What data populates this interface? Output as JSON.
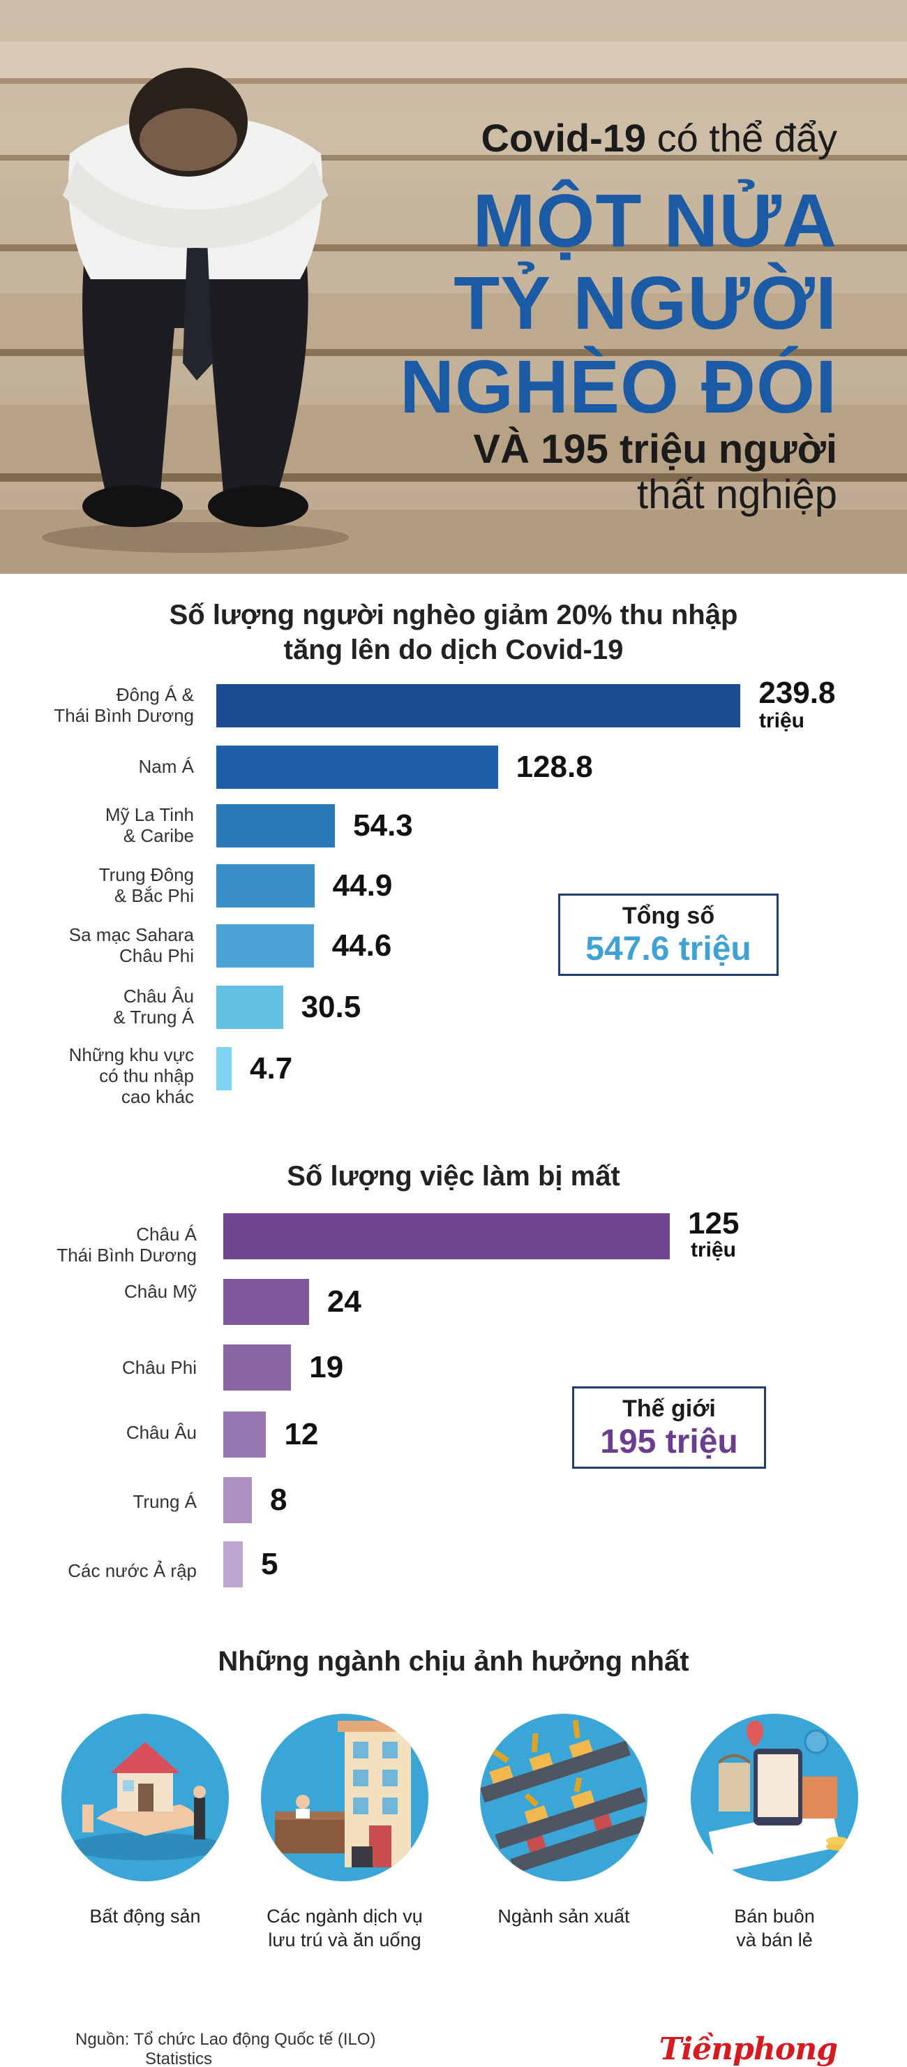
{
  "hero": {
    "line1_bold": "Covid-19",
    "line1_rest": " có thể đẩy",
    "line2": "MỘT NỬA",
    "line3": "TỶ NGƯỜI",
    "line4": "NGHÈO ĐÓI",
    "line5": "VÀ 195 triệu người",
    "line6": "thất nghiệp"
  },
  "poverty": {
    "title_line1": "Số lượng người nghèo giảm 20% thu nhập",
    "title_line2": "tăng lên do dịch Covid-19",
    "unit": "triệu",
    "total_label": "Tổng số",
    "total_value": "547.6 triệu",
    "total_color": "#3ea2d6"
  },
  "jobs": {
    "title": "Số lượng việc làm bị mất",
    "unit": "triệu",
    "total_label": "Thế giới",
    "total_value": "195 triệu",
    "total_color": "#6a3d8e"
  },
  "sectors": {
    "title": "Những ngành chịu ảnh hưởng nhất",
    "items": [
      {
        "label": "Bất động sản",
        "icon": "real-estate-icon"
      },
      {
        "label": "Các ngành dịch vụ\nlưu trú và ăn uống",
        "icon": "hotel-icon"
      },
      {
        "label": "Ngành sản xuất",
        "icon": "factory-icon"
      },
      {
        "label": "Bán buôn\nvà bán lẻ",
        "icon": "retail-icon"
      }
    ]
  },
  "source": {
    "line1": "Nguồn: Tổ chức Lao động Quốc tế (ILO)",
    "line2": "Statistics"
  },
  "logo": "Tiềnphong",
  "chart_data": [
    {
      "type": "bar",
      "orientation": "horizontal",
      "title": "Số lượng người nghèo giảm 20% thu nhập tăng lên do dịch Covid-19",
      "categories": [
        "Đông Á &\nThái Bình Dương",
        "Nam Á",
        "Mỹ La Tinh\n& Caribe",
        "Trung Đông\n& Bắc Phi",
        "Sa mạc Sahara\nChâu Phi",
        "Châu Âu\n& Trung Á",
        "Những khu vực\ncó thu nhập\ncao khác"
      ],
      "values": [
        239.8,
        128.8,
        54.3,
        44.9,
        44.6,
        30.5,
        4.7
      ],
      "value_labels": [
        "239.8",
        "128.8",
        "54.3",
        "44.9",
        "44.6",
        "30.5",
        "4.7"
      ],
      "colors": [
        "#1d4b91",
        "#1f5fa7",
        "#2a78b8",
        "#3b8fc7",
        "#4aa3d4",
        "#64c0e2",
        "#7dd3f0"
      ],
      "unit": "triệu",
      "xlim": [
        0,
        240
      ]
    },
    {
      "type": "bar",
      "orientation": "horizontal",
      "title": "Số lượng việc làm bị mất",
      "categories": [
        "Châu Á\nThái Bình Dương",
        "Châu Mỹ",
        "Châu Phi",
        "Châu Âu",
        "Trung Á",
        "Các nước Ả rập"
      ],
      "values": [
        125,
        24,
        19,
        12,
        8,
        5
      ],
      "value_labels": [
        "125",
        "24",
        "19",
        "12",
        "8",
        "5"
      ],
      "colors": [
        "#72468f",
        "#7f579b",
        "#8a65a6",
        "#9778b2",
        "#ab91c2",
        "#bda7d0"
      ],
      "unit": "triệu",
      "xlim": [
        0,
        125
      ]
    }
  ]
}
